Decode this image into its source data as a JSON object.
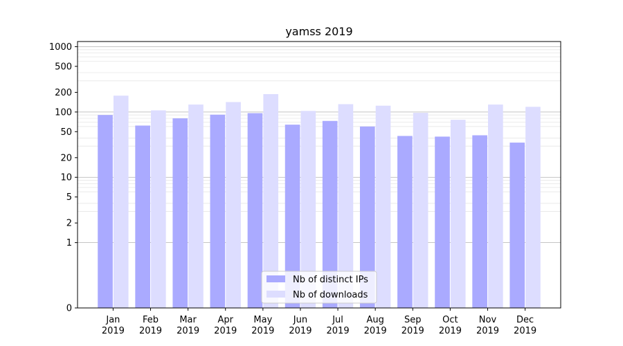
{
  "chart_data": {
    "type": "bar",
    "title": "yamss 2019",
    "xlabel": "",
    "ylabel": "",
    "yscale": "symlog",
    "ylim": [
      0,
      1200
    ],
    "yticks": [
      {
        "value": 0,
        "label": "0"
      },
      {
        "value": 1,
        "label": "1"
      },
      {
        "value": 2,
        "label": "2"
      },
      {
        "value": 5,
        "label": "5"
      },
      {
        "value": 10,
        "label": "10"
      },
      {
        "value": 20,
        "label": "20"
      },
      {
        "value": 50,
        "label": "50"
      },
      {
        "value": 100,
        "label": "100"
      },
      {
        "value": 200,
        "label": "200"
      },
      {
        "value": 500,
        "label": "500"
      },
      {
        "value": 1000,
        "label": "1000"
      }
    ],
    "grid": true,
    "legend_position": "bottom-center",
    "categories": [
      {
        "month": "Jan",
        "year": "2019"
      },
      {
        "month": "Feb",
        "year": "2019"
      },
      {
        "month": "Mar",
        "year": "2019"
      },
      {
        "month": "Apr",
        "year": "2019"
      },
      {
        "month": "May",
        "year": "2019"
      },
      {
        "month": "Jun",
        "year": "2019"
      },
      {
        "month": "Jul",
        "year": "2019"
      },
      {
        "month": "Aug",
        "year": "2019"
      },
      {
        "month": "Sep",
        "year": "2019"
      },
      {
        "month": "Oct",
        "year": "2019"
      },
      {
        "month": "Nov",
        "year": "2019"
      },
      {
        "month": "Dec",
        "year": "2019"
      }
    ],
    "series": [
      {
        "name": "Nb of distinct IPs",
        "color": "#aaaaff",
        "values": [
          90,
          62,
          80,
          91,
          96,
          64,
          73,
          60,
          43,
          42,
          44,
          34
        ]
      },
      {
        "name": "Nb of downloads",
        "color": "#ddddff",
        "values": [
          178,
          106,
          130,
          142,
          188,
          104,
          132,
          125,
          97,
          76,
          130,
          120
        ]
      }
    ]
  }
}
